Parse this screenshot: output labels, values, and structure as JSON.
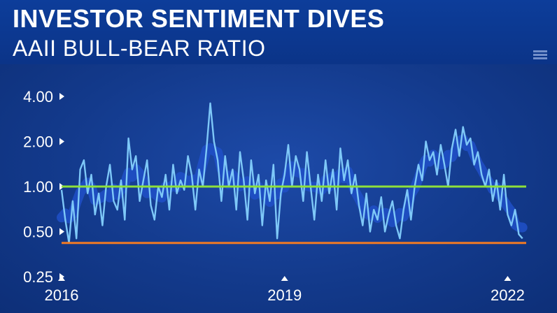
{
  "header": {
    "title": "INVESTOR SENTIMENT DIVES",
    "subtitle": "AAII BULL-BEAR RATIO"
  },
  "colors": {
    "background": "#133a8c",
    "line": "#7ec8f8",
    "band": "#2050c8",
    "reference_high": "#8ee03a",
    "reference_low": "#f07a24"
  },
  "chart_data": {
    "type": "line",
    "title": "INVESTOR SENTIMENT DIVES",
    "subtitle": "AAII BULL-BEAR RATIO",
    "xlabel": "",
    "ylabel": "",
    "y_scale": "log",
    "ylim": [
      0.25,
      4.0
    ],
    "xlim": [
      2016.0,
      2022.25
    ],
    "yticks": [
      {
        "value": 4.0,
        "label": "4.00"
      },
      {
        "value": 2.0,
        "label": "2.00"
      },
      {
        "value": 1.0,
        "label": "1.00"
      },
      {
        "value": 0.5,
        "label": "0.50"
      },
      {
        "value": 0.25,
        "label": "0.25"
      }
    ],
    "xticks": [
      {
        "value": 2016,
        "label": "2016"
      },
      {
        "value": 2019,
        "label": "2019"
      },
      {
        "value": 2022,
        "label": "2022"
      }
    ],
    "reference_lines": [
      {
        "value": 1.0,
        "color": "#8ee03a"
      },
      {
        "value": 0.42,
        "color": "#f07a24"
      }
    ],
    "series": [
      {
        "x": [
          2016.0,
          2016.05,
          2016.1,
          2016.15,
          2016.2,
          2016.25,
          2016.3,
          2016.35,
          2016.4,
          2016.45,
          2016.5,
          2016.55,
          2016.6,
          2016.65,
          2016.7,
          2016.75,
          2016.8,
          2016.85,
          2016.9,
          2016.95,
          2017.0,
          2017.05,
          2017.1,
          2017.15,
          2017.2,
          2017.25,
          2017.3,
          2017.35,
          2017.4,
          2017.45,
          2017.5,
          2017.55,
          2017.6,
          2017.65,
          2017.7,
          2017.75,
          2017.8,
          2017.85,
          2017.9,
          2017.95,
          2018.0,
          2018.05,
          2018.1,
          2018.15,
          2018.2,
          2018.25,
          2018.3,
          2018.35,
          2018.4,
          2018.45,
          2018.5,
          2018.55,
          2018.6,
          2018.65,
          2018.7,
          2018.75,
          2018.8,
          2018.85,
          2018.9,
          2018.95,
          2019.0,
          2019.05,
          2019.1,
          2019.15,
          2019.2,
          2019.25,
          2019.3,
          2019.35,
          2019.4,
          2019.45,
          2019.5,
          2019.55,
          2019.6,
          2019.65,
          2019.7,
          2019.75,
          2019.8,
          2019.85,
          2019.9,
          2019.95,
          2020.0,
          2020.05,
          2020.1,
          2020.15,
          2020.2,
          2020.25,
          2020.3,
          2020.35,
          2020.4,
          2020.45,
          2020.5,
          2020.55,
          2020.6,
          2020.65,
          2020.7,
          2020.75,
          2020.8,
          2020.85,
          2020.9,
          2020.95,
          2021.0,
          2021.05,
          2021.1,
          2021.15,
          2021.2,
          2021.25,
          2021.3,
          2021.35,
          2021.4,
          2021.45,
          2021.5,
          2021.55,
          2021.6,
          2021.65,
          2021.7,
          2021.75,
          2021.8,
          2021.85,
          2021.9,
          2021.95,
          2022.0,
          2022.05,
          2022.1,
          2022.15,
          2022.2
        ],
        "y": [
          0.95,
          0.6,
          0.42,
          0.8,
          0.45,
          1.3,
          1.5,
          0.9,
          1.2,
          0.65,
          0.9,
          0.55,
          1.0,
          1.4,
          0.8,
          0.7,
          1.1,
          0.6,
          2.1,
          1.3,
          1.6,
          0.8,
          1.1,
          1.5,
          0.75,
          0.6,
          1.0,
          0.85,
          1.2,
          0.7,
          1.4,
          0.9,
          1.1,
          0.95,
          1.6,
          1.2,
          0.7,
          1.3,
          1.0,
          1.8,
          3.6,
          2.0,
          1.5,
          0.8,
          1.6,
          1.0,
          1.3,
          0.7,
          1.7,
          1.1,
          0.6,
          1.5,
          0.9,
          1.2,
          0.55,
          1.1,
          0.8,
          1.4,
          0.45,
          0.9,
          1.2,
          1.9,
          1.0,
          1.6,
          1.3,
          0.8,
          1.7,
          1.0,
          0.6,
          1.2,
          0.8,
          1.5,
          0.9,
          1.3,
          0.7,
          1.8,
          1.1,
          1.5,
          0.9,
          1.2,
          0.75,
          0.55,
          0.9,
          0.5,
          0.7,
          0.6,
          0.85,
          0.5,
          0.65,
          0.8,
          0.55,
          0.45,
          0.7,
          0.95,
          0.6,
          1.0,
          1.4,
          1.1,
          2.0,
          1.5,
          1.7,
          1.2,
          1.9,
          1.4,
          1.0,
          1.8,
          2.4,
          1.6,
          2.5,
          1.9,
          2.1,
          1.4,
          1.7,
          1.2,
          1.0,
          1.3,
          0.8,
          1.1,
          0.7,
          1.2,
          0.65,
          0.55,
          0.7,
          0.48,
          0.45
        ]
      }
    ]
  }
}
